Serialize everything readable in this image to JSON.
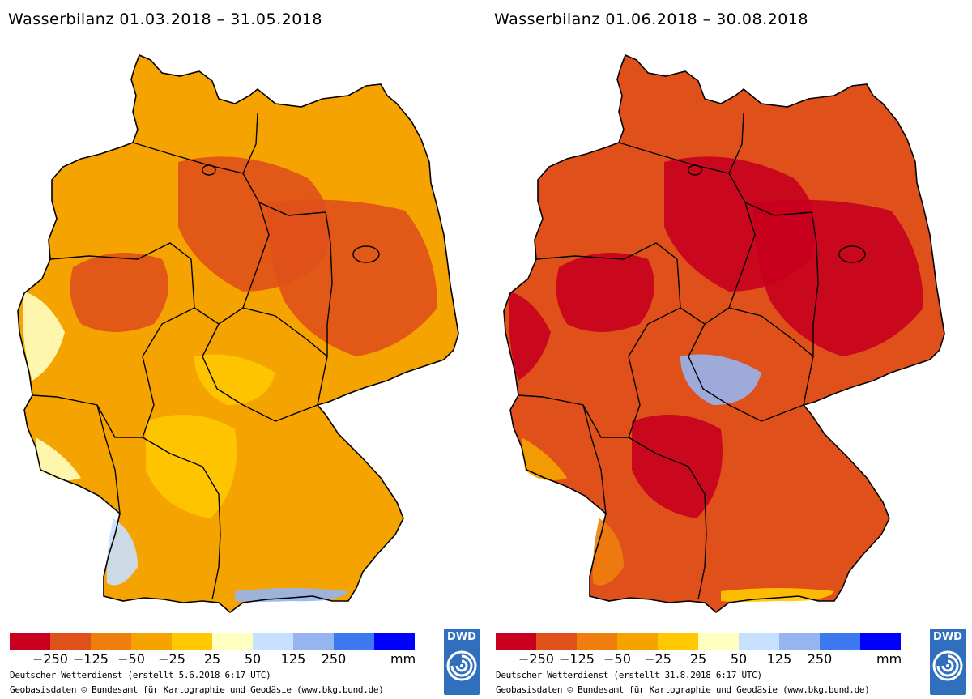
{
  "legend": {
    "colors": [
      "#c8001e",
      "#e0501a",
      "#f07e0e",
      "#f5a300",
      "#ffc800",
      "#ffffc0",
      "#c8e0ff",
      "#96b4f0",
      "#3c78f0",
      "#0000ff"
    ],
    "ticks": [
      "−250",
      "−125",
      "−50",
      "−25",
      "25",
      "50",
      "125",
      "250"
    ],
    "unit": "mm"
  },
  "maps": [
    {
      "title": "Wasserbilanz 01.03.2018 – 31.05.2018",
      "credit_line1": "Deutscher Wetterdienst (erstellt 5.6.2018 6:17 UTC)",
      "credit_line2": "Geobasisdaten © Bundesamt für Kartographie und Geodäsie (www.bkg.bund.de)",
      "logo_text": "DWD",
      "base_color": "#f5a300",
      "zones": [
        "#e0501a",
        "#e0501a",
        "#e0501a",
        "#ffffc0",
        "#ffffc0",
        "#c8e0ff",
        "#96b4f0",
        "#ffc800",
        "#ffc800"
      ]
    },
    {
      "title": "Wasserbilanz 01.06.2018 – 30.08.2018",
      "credit_line1": "Deutscher Wetterdienst (erstellt 31.8.2018 6:17 UTC)",
      "credit_line2": "Geobasisdaten © Bundesamt für Kartographie und Geodäsie (www.bkg.bund.de)",
      "logo_text": "DWD",
      "base_color": "#e0501a",
      "zones": [
        "#c8001e",
        "#c8001e",
        "#c8001e",
        "#c8001e",
        "#f5a300",
        "#f07e0e",
        "#ffc800",
        "#96b4f0",
        "#c8001e"
      ]
    }
  ]
}
